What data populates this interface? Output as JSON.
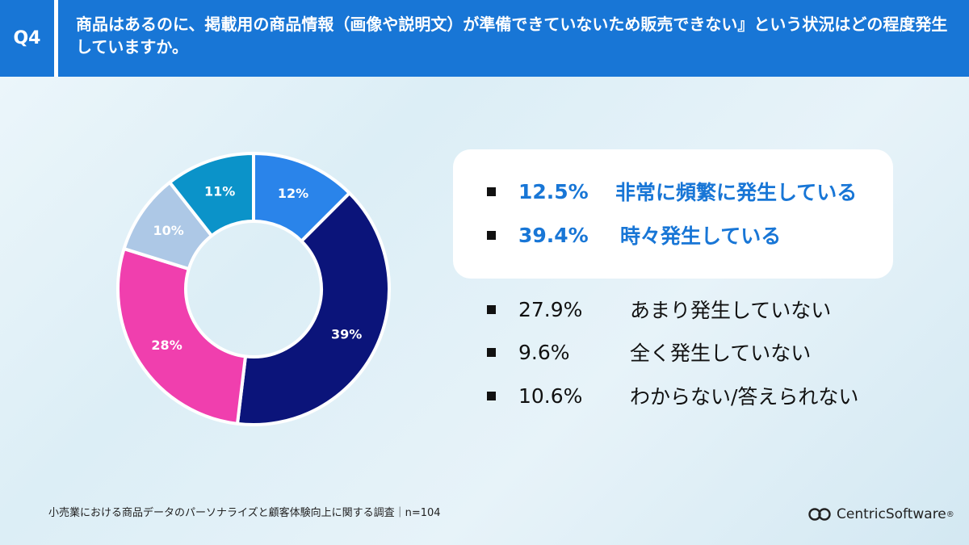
{
  "header": {
    "q_label": "Q4",
    "question": "商品はあるのに、掲載用の商品情報（画像や説明文）が準備できていないため販売できない』という状況はどの程度発生していますか。"
  },
  "chart_data": {
    "type": "pie",
    "donut": true,
    "categories": [
      "非常に頻繁に発生している",
      "時々発生している",
      "あまり発生していない",
      "全く発生していない",
      "わからない/答えられない"
    ],
    "values": [
      12.5,
      39.4,
      27.9,
      9.6,
      10.6
    ],
    "slice_labels": [
      "12%",
      "39%",
      "28%",
      "10%",
      "11%"
    ],
    "colors": [
      "#2a84ea",
      "#0b147a",
      "#f03fae",
      "#adc8e6",
      "#0b93c9"
    ],
    "start_angle_deg": 0,
    "direction": "clockwise",
    "legend": [
      {
        "pct": "12.5%",
        "label": "非常に頻繁に発生している",
        "highlight": true
      },
      {
        "pct": "39.4%",
        "label": "時々発生している",
        "highlight": true
      },
      {
        "pct": "27.9%",
        "label": "あまり発生していない",
        "highlight": false
      },
      {
        "pct": "9.6%",
        "label": "全く発生していない",
        "highlight": false
      },
      {
        "pct": "10.6%",
        "label": "わからない/答えられない",
        "highlight": false
      }
    ]
  },
  "footer": {
    "note": "小売業における商品データのパーソナライズと顧客体験向上に関する調査｜n=104",
    "logo_text": "CentricSoftware",
    "logo_suffix": "®",
    "logo_icon": "centric-logo-icon"
  }
}
